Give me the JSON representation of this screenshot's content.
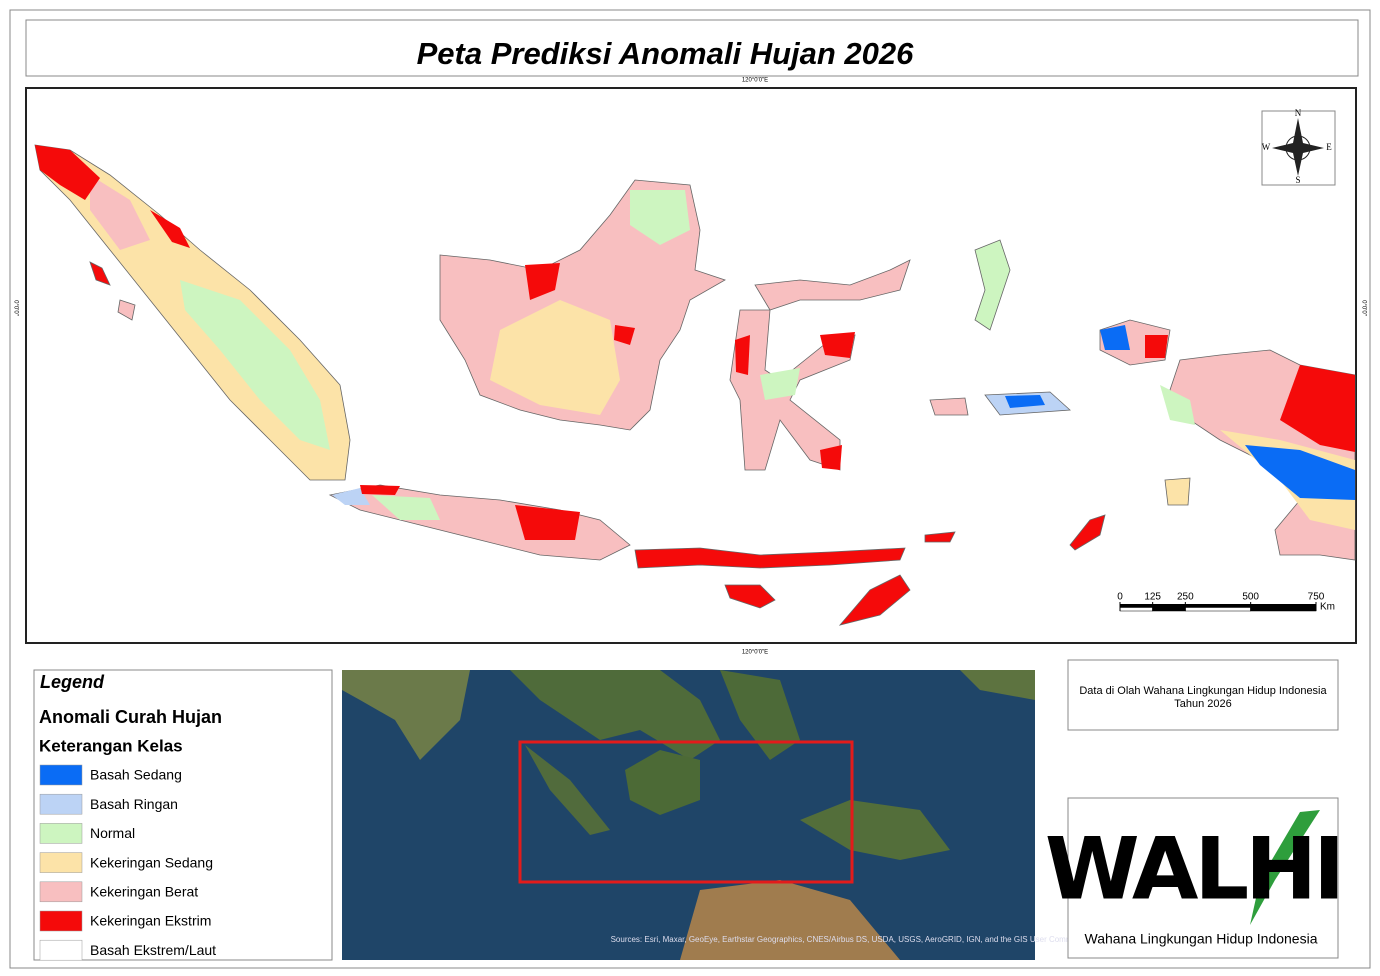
{
  "title": "Peta Prediksi Anomali Hujan 2026",
  "graticule": {
    "top": "120°0'0\"E",
    "bottom": "120°0'0\"E",
    "left": "0°0'0\"",
    "right": "0°0'0\""
  },
  "compass": {
    "n": "N",
    "e": "E",
    "s": "S",
    "w": "W"
  },
  "scale_bar": {
    "ticks": [
      0,
      125,
      250,
      500,
      750
    ],
    "unit": "Km"
  },
  "legend": {
    "heading": "Legend",
    "title": "Anomali Curah Hujan",
    "subtitle": "Keterangan Kelas",
    "items": [
      {
        "label": "Basah Sedang",
        "color": "#0a6cf5"
      },
      {
        "label": "Basah Ringan",
        "color": "#bcd3f5"
      },
      {
        "label": "Normal",
        "color": "#cdf5c0"
      },
      {
        "label": "Kekeringan Sedang",
        "color": "#fce3a8"
      },
      {
        "label": "Kekeringan Berat",
        "color": "#f8bfc0"
      },
      {
        "label": "Kekeringan Ekstrim",
        "color": "#f50a0a"
      },
      {
        "label": "Basah Ekstrem/Laut",
        "color": "#ffffff"
      }
    ]
  },
  "inset": {
    "attribution": "Sources: Esri, Maxar, GeoEye, Earthstar Geographics, CNES/Airbus DS, USDA, USGS, AeroGRID, IGN, and the GIS User Community"
  },
  "credit": {
    "lines": [
      "Data di Olah Wahana Lingkungan Hidup Indonesia",
      "Tahun 2026"
    ]
  },
  "logo": {
    "text": "WALHI",
    "caption": "Wahana Lingkungan Hidup Indonesia"
  }
}
